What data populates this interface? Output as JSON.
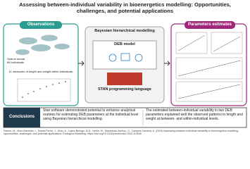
{
  "title": "Assessing between-individual variability in bioenergetics modelling: Opportunities, challenges, and potential applications",
  "observations": {
    "header": "Observations",
    "species": "Sparus aurata",
    "count": "66 individuals",
    "measures": "11 measures of length and weight within individuals"
  },
  "model": {
    "title": "Bayesian hierarchical modelling",
    "deb": "DEB model",
    "stan": "STAN programming language"
  },
  "estimates": {
    "header": "Parameters estimates"
  },
  "conclusions": {
    "label": "Conclusions",
    "left": "Stan software demonstrated potential to enhance analytical routines for estimating DEB parameters at the individual level using Bayesian hierarchical modelling.",
    "right": "The estimated between-individual variability in two DEB parameters explained well the observed patterns in length and weight at between- and within-individual levels."
  },
  "citation": "Palmer, M., Moro-Martínez, I., Tomás-Ferrer, J., Grau, A., López-Bellugo, M.D., Herlin, M., Staranisdo-Zachou, O., Campos-Candela, A. (2024) Assessing between-individual variability in bioenergetics modelling: opportunities, challenges, and potential applications. Ecological Modelling. https://doi.org/10.1016/j.ecolmodel.2024.110648"
}
